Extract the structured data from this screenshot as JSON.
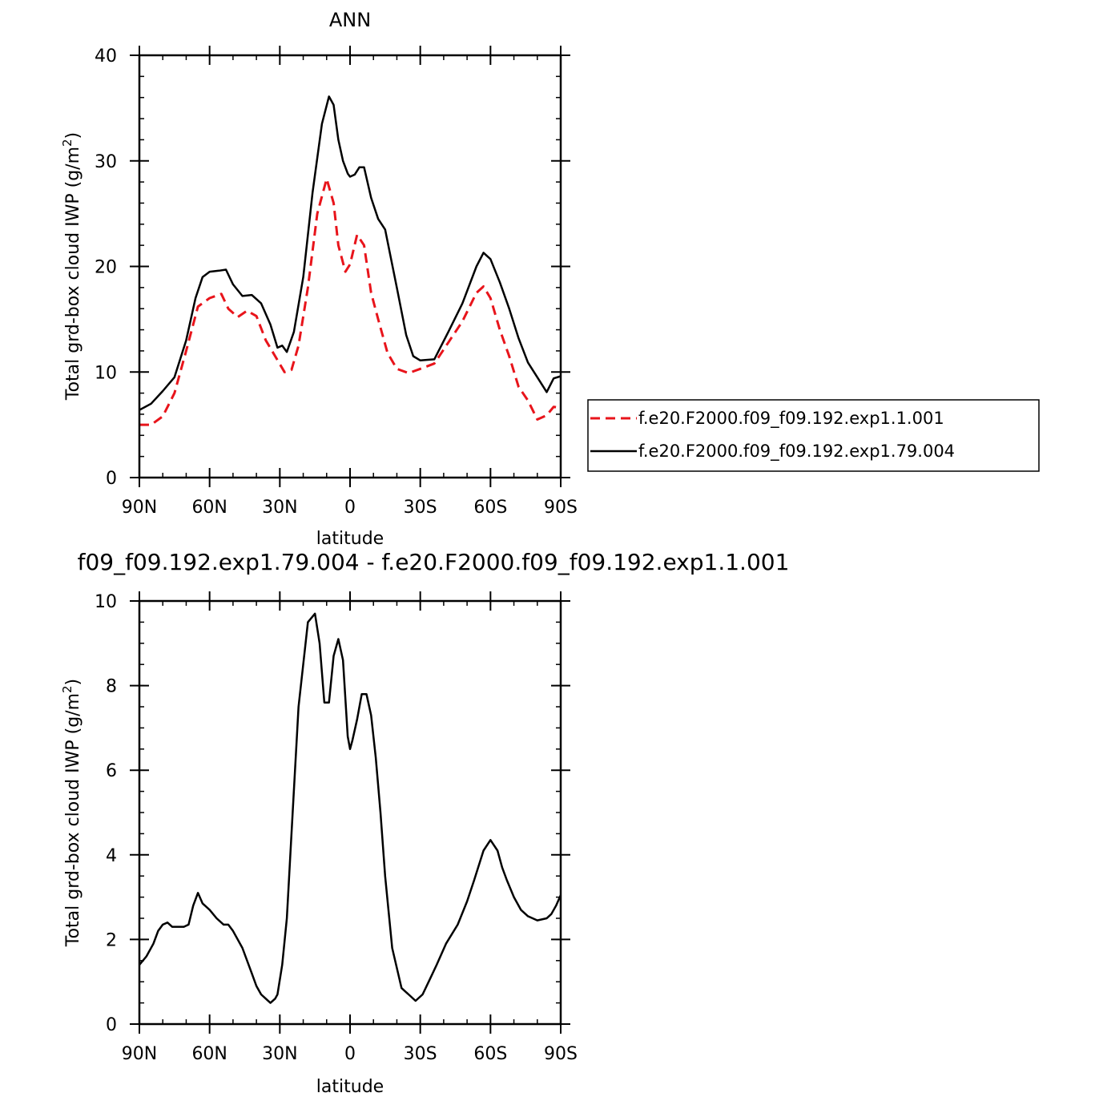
{
  "chart_data": [
    {
      "type": "line",
      "title": "ANN",
      "xlabel": "latitude",
      "ylabel_main": "Total grd-box cloud IWP (g/m",
      "ylabel_sup": "2",
      "ylabel_close": ")",
      "xlim": [
        90,
        -90
      ],
      "ylim": [
        0,
        40
      ],
      "xticks": [
        {
          "value": 90,
          "label": "90N"
        },
        {
          "value": 60,
          "label": "60N"
        },
        {
          "value": 30,
          "label": "30N"
        },
        {
          "value": 0,
          "label": "0"
        },
        {
          "value": -30,
          "label": "30S"
        },
        {
          "value": -60,
          "label": "60S"
        },
        {
          "value": -90,
          "label": "90S"
        }
      ],
      "yticks": [
        {
          "value": 0,
          "label": "0"
        },
        {
          "value": 10,
          "label": "10"
        },
        {
          "value": 20,
          "label": "20"
        },
        {
          "value": 30,
          "label": "30"
        },
        {
          "value": 40,
          "label": "40"
        }
      ],
      "legend": "right",
      "series": [
        {
          "name": "f.e20.F2000.f09_f09.192.exp1.1.001",
          "color": "#e8141b",
          "dash": "dashed",
          "x": [
            90,
            85,
            80,
            75,
            70,
            65,
            60,
            55,
            52,
            48,
            44,
            40,
            36,
            32,
            28,
            25,
            22,
            18,
            14,
            10,
            7,
            5,
            2,
            0,
            -3,
            -6,
            -9,
            -12,
            -16,
            -20,
            -25,
            -30,
            -36,
            -42,
            -48,
            -54,
            -57,
            -60,
            -64,
            -68,
            -72,
            -76,
            -80,
            -84,
            -87,
            -90
          ],
          "values": [
            5.0,
            5.0,
            5.8,
            8.0,
            12.0,
            16.2,
            17.0,
            17.4,
            16.0,
            15.2,
            15.8,
            15.3,
            13.0,
            11.5,
            10.0,
            10.2,
            12.5,
            18.0,
            25.0,
            28.3,
            26.0,
            22.0,
            19.5,
            20.2,
            23.0,
            22.0,
            17.5,
            15.0,
            11.8,
            10.3,
            9.9,
            10.3,
            10.8,
            12.8,
            14.8,
            17.5,
            18.1,
            17.0,
            14.0,
            11.5,
            8.6,
            7.3,
            5.5,
            5.9,
            6.7,
            6.6
          ]
        },
        {
          "name": "f.e20.F2000.f09_f09.192.exp1.79.004",
          "color": "#000000",
          "dash": "solid",
          "x": [
            90,
            85,
            80,
            75,
            70,
            66,
            63,
            60,
            56,
            53,
            50,
            46,
            42,
            38,
            34,
            31,
            29,
            27,
            24,
            20,
            16,
            12,
            9,
            7,
            5,
            3,
            1,
            0,
            -2,
            -4,
            -6,
            -9,
            -12,
            -15,
            -20,
            -24,
            -27,
            -30,
            -36,
            -42,
            -48,
            -54,
            -57,
            -60,
            -64,
            -68,
            -72,
            -76,
            -80,
            -84,
            -87,
            -90
          ],
          "values": [
            6.4,
            7.0,
            8.2,
            9.5,
            13.0,
            17.0,
            19.0,
            19.5,
            19.6,
            19.7,
            18.3,
            17.2,
            17.3,
            16.5,
            14.5,
            12.3,
            12.5,
            11.9,
            13.8,
            19.0,
            27.0,
            33.5,
            36.1,
            35.3,
            32.0,
            30.0,
            28.8,
            28.5,
            28.7,
            29.4,
            29.4,
            26.5,
            24.5,
            23.5,
            18.0,
            13.5,
            11.5,
            11.1,
            11.2,
            13.8,
            16.5,
            20.0,
            21.3,
            20.7,
            18.5,
            16.0,
            13.2,
            10.9,
            9.5,
            8.1,
            9.4,
            9.6
          ]
        }
      ]
    },
    {
      "type": "line",
      "title": "f09_f09.192.exp1.79.004 - f.e20.F2000.f09_f09.192.exp1.1.001",
      "xlabel": "latitude",
      "ylabel_main": "Total grd-box cloud IWP (g/m",
      "ylabel_sup": "2",
      "ylabel_close": ")",
      "xlim": [
        90,
        -90
      ],
      "ylim": [
        0,
        10
      ],
      "xticks": [
        {
          "value": 90,
          "label": "90N"
        },
        {
          "value": 60,
          "label": "60N"
        },
        {
          "value": 30,
          "label": "30N"
        },
        {
          "value": 0,
          "label": "0"
        },
        {
          "value": -30,
          "label": "30S"
        },
        {
          "value": -60,
          "label": "60S"
        },
        {
          "value": -90,
          "label": "90S"
        }
      ],
      "yticks": [
        {
          "value": 0,
          "label": "0"
        },
        {
          "value": 2,
          "label": "2"
        },
        {
          "value": 4,
          "label": "4"
        },
        {
          "value": 6,
          "label": "6"
        },
        {
          "value": 8,
          "label": "8"
        },
        {
          "value": 10,
          "label": "10"
        }
      ],
      "series": [
        {
          "color": "#000000",
          "dash": "solid",
          "x": [
            90,
            87,
            84,
            82,
            80,
            78,
            76,
            74,
            71,
            69,
            67,
            65,
            63,
            60,
            57,
            54,
            52,
            50,
            46,
            42,
            40,
            38,
            36,
            34,
            32,
            31,
            29,
            27,
            25,
            22,
            18,
            15,
            13,
            11,
            9,
            7,
            5,
            3,
            1,
            0,
            -1,
            -3,
            -5,
            -7,
            -9,
            -11,
            -13,
            -15,
            -18,
            -22,
            -25,
            -28,
            -31,
            -34,
            -37,
            -41,
            -46,
            -50,
            -53,
            -57,
            -60,
            -63,
            -65,
            -67,
            -70,
            -73,
            -76,
            -80,
            -84,
            -86,
            -88,
            -90
          ],
          "values": [
            1.4,
            1.6,
            1.9,
            2.2,
            2.35,
            2.4,
            2.3,
            2.3,
            2.3,
            2.35,
            2.8,
            3.1,
            2.85,
            2.7,
            2.5,
            2.35,
            2.35,
            2.2,
            1.8,
            1.2,
            0.9,
            0.7,
            0.6,
            0.5,
            0.6,
            0.7,
            1.4,
            2.5,
            4.5,
            7.5,
            9.5,
            9.7,
            9.0,
            7.6,
            7.6,
            8.7,
            9.1,
            8.6,
            6.8,
            6.5,
            6.7,
            7.2,
            7.8,
            7.8,
            7.3,
            6.3,
            5.0,
            3.5,
            1.8,
            0.85,
            0.7,
            0.55,
            0.7,
            1.05,
            1.4,
            1.9,
            2.35,
            2.9,
            3.4,
            4.1,
            4.35,
            4.1,
            3.7,
            3.4,
            3.0,
            2.7,
            2.55,
            2.45,
            2.5,
            2.6,
            2.8,
            3.05
          ]
        }
      ]
    }
  ]
}
